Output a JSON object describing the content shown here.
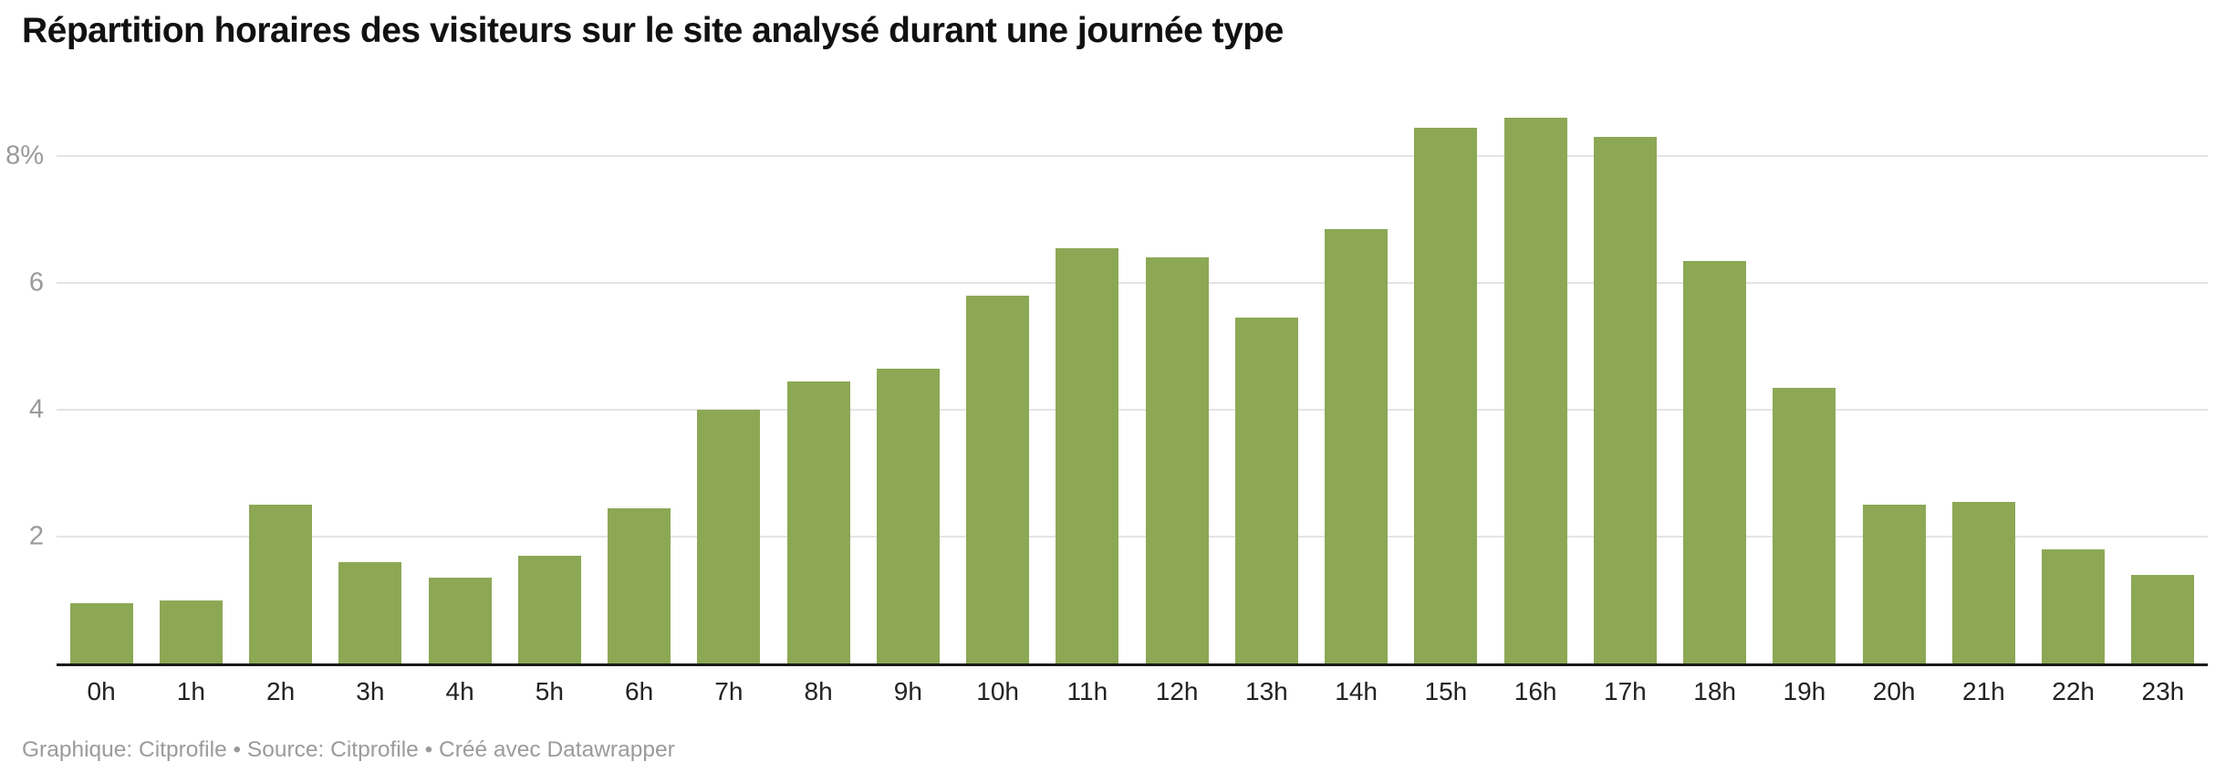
{
  "title": "Répartition horaires des visiteurs sur le site analysé durant une journée type",
  "footer": {
    "credits": "Graphique: Citprofile • Source: Citprofile • Créé avec Datawrapper"
  },
  "chart_data": {
    "type": "bar",
    "title": "Répartition horaires des visiteurs sur le site analysé durant une journée type",
    "categories": [
      "0h",
      "1h",
      "2h",
      "3h",
      "4h",
      "5h",
      "6h",
      "7h",
      "8h",
      "9h",
      "10h",
      "11h",
      "12h",
      "13h",
      "14h",
      "15h",
      "16h",
      "17h",
      "18h",
      "19h",
      "20h",
      "21h",
      "22h",
      "23h"
    ],
    "values": [
      0.95,
      1.0,
      2.5,
      1.6,
      1.35,
      1.7,
      2.45,
      4.0,
      4.45,
      4.65,
      5.8,
      6.55,
      6.4,
      5.45,
      6.85,
      8.45,
      8.6,
      8.3,
      6.35,
      4.35,
      2.5,
      2.55,
      1.8,
      1.4
    ],
    "unit": "%",
    "xlabel": "",
    "ylabel": "",
    "ylim": [
      0,
      8.66
    ],
    "y_ticks": [
      {
        "value": 2,
        "label": "2"
      },
      {
        "value": 4,
        "label": "4"
      },
      {
        "value": 6,
        "label": "6"
      },
      {
        "value": 8,
        "label": "8%"
      }
    ],
    "grid": "horizontal",
    "legend": "none",
    "bar_color": "#8CA855"
  }
}
